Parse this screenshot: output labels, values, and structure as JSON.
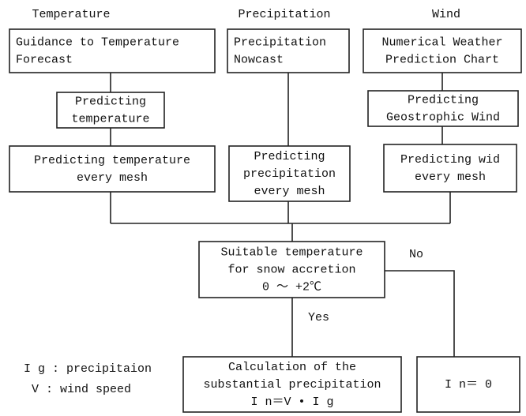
{
  "headers": [
    "Temperature",
    "Precipitation",
    "Wind"
  ],
  "nodes": [
    {
      "lines": [
        "Guidance to Temperature",
        "Forecast"
      ]
    },
    {
      "lines": [
        "Precipitation",
        "Nowcast"
      ]
    },
    {
      "lines": [
        "Numerical Weather",
        "Prediction Chart"
      ]
    },
    {
      "lines": [
        "Predicting",
        "temperature"
      ]
    },
    {
      "lines": [
        "Predicting",
        "Geostrophic Wind"
      ]
    },
    {
      "lines": [
        "Predicting temperature",
        "every mesh"
      ]
    },
    {
      "lines": [
        "Predicting",
        "precipitation",
        "every mesh"
      ]
    },
    {
      "lines": [
        "Predicting wid",
        "every mesh"
      ]
    },
    {
      "lines": [
        "Suitable temperature",
        "for snow accretion",
        "0 ～ +2℃"
      ]
    },
    {
      "lines": [
        "Calculation of the",
        "substantial precipitation",
        "I n＝V • I g"
      ]
    },
    {
      "lines": [
        "I n＝ 0"
      ]
    }
  ],
  "edge_labels": [
    "No",
    "Yes"
  ],
  "legend": [
    "I g : precipitaion",
    "V : wind speed"
  ]
}
